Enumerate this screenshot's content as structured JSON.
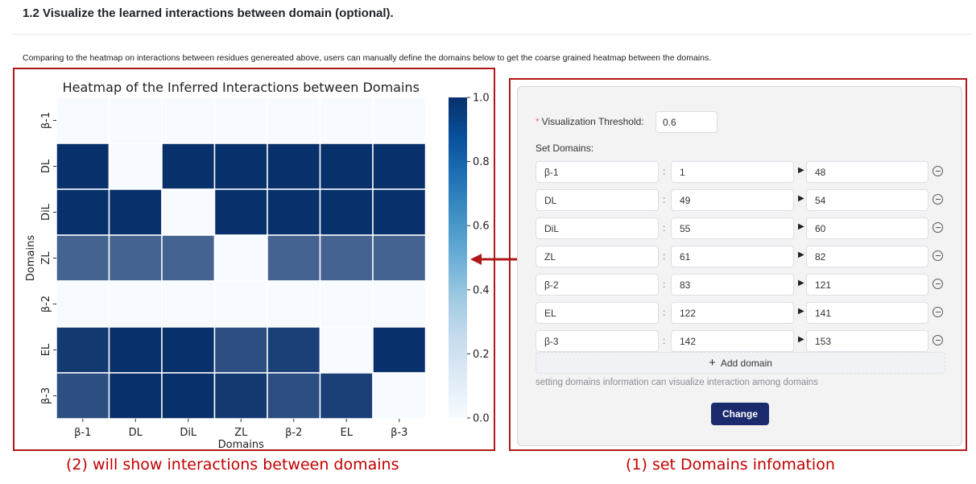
{
  "section": {
    "title": "1.2 Visualize the learned interactions between domain (optional).",
    "description": "Comparing to the heatmap on interactions between residues genereated above, users can manually define the domains below to get the coarse grained heatmap between the domains."
  },
  "chart_data": {
    "type": "heatmap",
    "title": "Heatmap of the Inferred Interactions between Domains",
    "xlabel": "Domains",
    "ylabel": "Domains",
    "x_categories": [
      "β-1",
      "DL",
      "DiL",
      "ZL",
      "β-2",
      "EL",
      "β-3"
    ],
    "y_categories": [
      "β-1",
      "DL",
      "DiL",
      "ZL",
      "β-2",
      "EL",
      "β-3"
    ],
    "values": [
      [
        0.0,
        0.0,
        0.0,
        0.0,
        0.0,
        0.0,
        0.0
      ],
      [
        1.0,
        0.0,
        1.0,
        1.0,
        1.0,
        1.0,
        1.0
      ],
      [
        1.0,
        1.0,
        0.0,
        1.0,
        1.0,
        1.0,
        1.0
      ],
      [
        0.75,
        0.75,
        0.75,
        0.0,
        0.75,
        0.75,
        0.75
      ],
      [
        0.0,
        0.0,
        0.0,
        0.0,
        0.0,
        0.0,
        0.0
      ],
      [
        0.95,
        1.0,
        1.0,
        0.85,
        0.92,
        0.0,
        1.0
      ],
      [
        0.85,
        1.0,
        1.0,
        0.95,
        0.85,
        0.92,
        0.0
      ]
    ],
    "colorbar": {
      "min": 0.0,
      "max": 1.0,
      "ticks": [
        0.0,
        0.2,
        0.4,
        0.6,
        0.8,
        1.0
      ],
      "tick_labels": [
        "0.0",
        "0.2",
        "0.4",
        "0.6",
        "0.8",
        "1.0"
      ]
    },
    "colormap": "Blues",
    "grid": true
  },
  "form": {
    "threshold_label": "Visualization Threshold",
    "threshold_value": "0.6",
    "set_domains_label": "Set Domains:",
    "domains": [
      {
        "name": "β-1",
        "start": "1",
        "end": "48"
      },
      {
        "name": "DL",
        "start": "49",
        "end": "54"
      },
      {
        "name": "DiL",
        "start": "55",
        "end": "60"
      },
      {
        "name": "ZL",
        "start": "61",
        "end": "82"
      },
      {
        "name": "β-2",
        "start": "83",
        "end": "121"
      },
      {
        "name": "EL",
        "start": "122",
        "end": "141"
      },
      {
        "name": "β-3",
        "start": "142",
        "end": "153"
      }
    ],
    "add_domain_label": "Add domain",
    "hint": "setting domains information can visualize interaction among domains",
    "change_label": "Change",
    "colon": ":",
    "colors": {
      "button": "#1a2a6c",
      "required": "#f56c6c"
    }
  },
  "annotations": {
    "left_caption": "(2) will show interactions between domains",
    "right_caption": "(1) set Domains infomation",
    "color": "#c00000"
  }
}
